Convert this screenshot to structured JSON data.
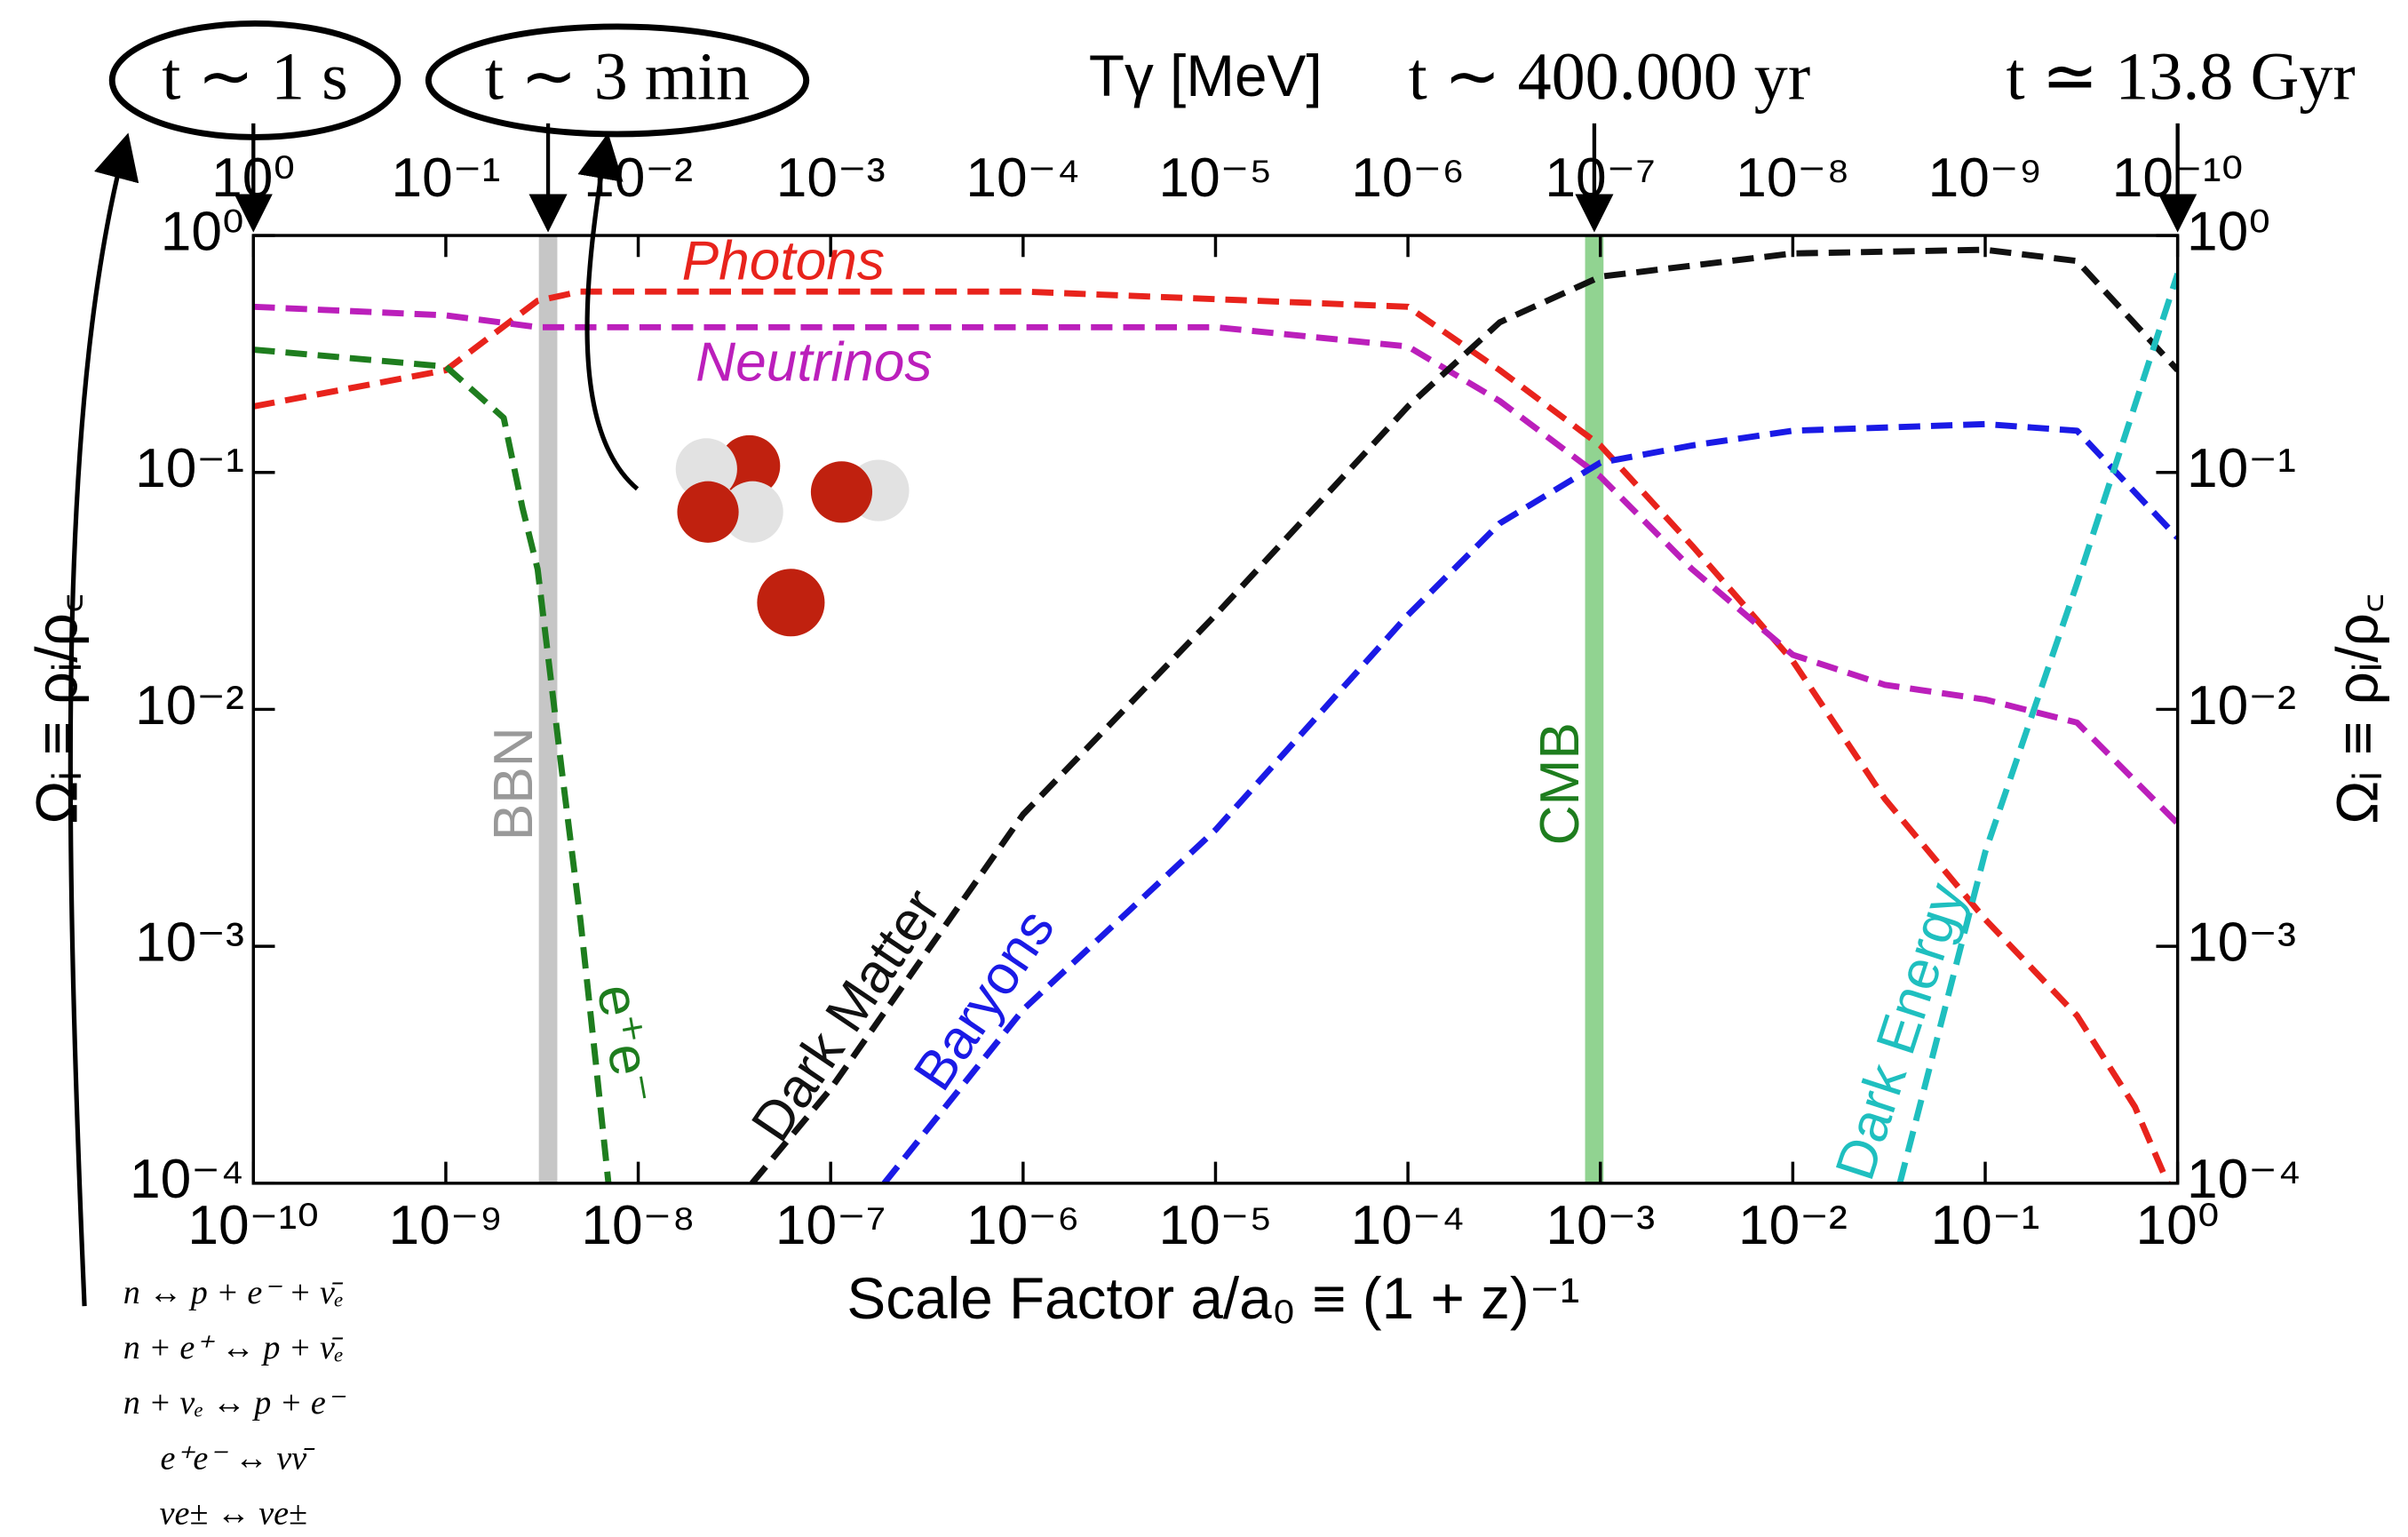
{
  "chart_data": {
    "type": "line",
    "xlabel": "Scale Factor a/a₀ ≡ (1 + z)⁻¹",
    "ylabel": "Ωᵢ ≡ ρᵢ/ρ꜀",
    "y2label": "Ωᵢ ≡ ρᵢ/ρ꜀",
    "x2label": "Tγ [MeV]",
    "xscale": "log",
    "yscale": "log",
    "xlim": [
      1e-10,
      1
    ],
    "ylim": [
      0.0001,
      1
    ],
    "x2lim": [
      1,
      1e-10
    ],
    "y2lim": [
      0.0001,
      1
    ],
    "xticks": [
      {
        "value": 1e-10,
        "label": "10⁻¹⁰"
      },
      {
        "value": 1e-09,
        "label": "10⁻⁹"
      },
      {
        "value": 1e-08,
        "label": "10⁻⁸"
      },
      {
        "value": 1e-07,
        "label": "10⁻⁷"
      },
      {
        "value": 1e-06,
        "label": "10⁻⁶"
      },
      {
        "value": 1e-05,
        "label": "10⁻⁵"
      },
      {
        "value": 0.0001,
        "label": "10⁻⁴"
      },
      {
        "value": 0.001,
        "label": "10⁻³"
      },
      {
        "value": 0.01,
        "label": "10⁻²"
      },
      {
        "value": 0.1,
        "label": "10⁻¹"
      },
      {
        "value": 1,
        "label": "10⁰"
      }
    ],
    "x2ticks": [
      {
        "value": 1,
        "label": "10⁰"
      },
      {
        "value": 0.1,
        "label": "10⁻¹"
      },
      {
        "value": 0.01,
        "label": "10⁻²"
      },
      {
        "value": 0.001,
        "label": "10⁻³"
      },
      {
        "value": 0.0001,
        "label": "10⁻⁴"
      },
      {
        "value": 1e-05,
        "label": "10⁻⁵"
      },
      {
        "value": 1e-06,
        "label": "10⁻⁶"
      },
      {
        "value": 1e-07,
        "label": "10⁻⁷"
      },
      {
        "value": 1e-08,
        "label": "10⁻⁸"
      },
      {
        "value": 1e-09,
        "label": "10⁻⁹"
      },
      {
        "value": 1e-10,
        "label": "10⁻¹⁰"
      }
    ],
    "yticks": [
      {
        "value": 0.0001,
        "label": "10⁻⁴"
      },
      {
        "value": 0.001,
        "label": "10⁻³"
      },
      {
        "value": 0.01,
        "label": "10⁻²"
      },
      {
        "value": 0.1,
        "label": "10⁻¹"
      },
      {
        "value": 1,
        "label": "10⁰"
      }
    ],
    "y2ticks": [
      {
        "value": 0.0001,
        "label": "10⁻⁴"
      },
      {
        "value": 0.001,
        "label": "10⁻³"
      },
      {
        "value": 0.01,
        "label": "10⁻²"
      },
      {
        "value": 0.1,
        "label": "10⁻¹"
      },
      {
        "value": 1,
        "label": "10⁰"
      }
    ],
    "series": [
      {
        "name": "Photons",
        "color": "#e8231c",
        "x": [
          1e-10,
          1e-09,
          3e-09,
          5e-09,
          1e-08,
          1e-06,
          0.0001,
          0.0003,
          0.001,
          0.003,
          0.01,
          0.03,
          0.1,
          0.3,
          0.6,
          1
        ],
        "values": [
          0.19,
          0.27,
          0.53,
          0.58,
          0.58,
          0.58,
          0.5,
          0.27,
          0.13,
          0.049,
          0.016,
          0.0042,
          0.0013,
          0.00051,
          0.00021,
          8e-05
        ]
      },
      {
        "name": "Neutrinos",
        "color": "#bb1fbb",
        "x": [
          1e-10,
          1e-09,
          3e-09,
          1e-08,
          1e-05,
          0.0001,
          0.0003,
          0.001,
          0.003,
          0.01,
          0.03,
          0.1,
          0.3,
          1
        ],
        "values": [
          0.5,
          0.46,
          0.41,
          0.41,
          0.41,
          0.34,
          0.2,
          0.096,
          0.039,
          0.017,
          0.0127,
          0.011,
          0.0088,
          0.0033
        ]
      },
      {
        "name": "e⁺e⁻",
        "color": "#1e7d1e",
        "x": [
          1e-10,
          1e-09,
          2e-09,
          2.5e-09,
          3e-09,
          4e-09,
          5e-09,
          6e-09,
          7e-09
        ],
        "values": [
          0.33,
          0.28,
          0.17,
          0.071,
          0.039,
          0.0056,
          0.0013,
          0.00033,
          0.0001
        ]
      },
      {
        "name": "Dark Matter",
        "color": "#111111",
        "x": [
          3.9e-08,
          1e-07,
          1e-06,
          1e-05,
          0.0001,
          0.0003,
          0.001,
          0.01,
          0.1,
          0.3,
          1
        ],
        "values": [
          0.0001,
          0.00025,
          0.0036,
          0.025,
          0.19,
          0.43,
          0.67,
          0.84,
          0.87,
          0.78,
          0.27
        ]
      },
      {
        "name": "Baryons",
        "color": "#1a1ae6",
        "x": [
          1.9e-07,
          1e-06,
          1e-05,
          0.0001,
          0.0003,
          0.001,
          0.003,
          0.01,
          0.1,
          0.3,
          1
        ],
        "values": [
          0.0001,
          0.00054,
          0.0031,
          0.025,
          0.061,
          0.11,
          0.13,
          0.15,
          0.16,
          0.15,
          0.053
        ]
      },
      {
        "name": "Dark Energy",
        "color": "#1fbfbf",
        "x": [
          0.036,
          0.1,
          0.3,
          1
        ],
        "values": [
          0.0001,
          0.0025,
          0.034,
          0.69
        ]
      }
    ],
    "bands": [
      {
        "label": "BBN",
        "x": 3.4e-09,
        "color": "#b3b3b3"
      },
      {
        "label": "CMB",
        "x": 0.00093,
        "color": "#6cc46c"
      }
    ],
    "annotations": [
      {
        "text": "t ∼ 1 s",
        "x": 1e-10
      },
      {
        "text": "t ∼ 3 min",
        "x": 3.4e-09
      },
      {
        "text": "t ∼ 400.000 yr",
        "x": 0.00093
      },
      {
        "text": "t ≃ 13.8 Gyr",
        "x": 1
      }
    ],
    "reactions": [
      "n ↔ p + e⁻ + ν̄ₑ",
      "n + e⁺ ↔ p + ν̄ₑ",
      "n + νₑ ↔ p + e⁻",
      "e⁺e⁻ ↔ νν̄",
      "νe± ↔ νe±"
    ]
  }
}
